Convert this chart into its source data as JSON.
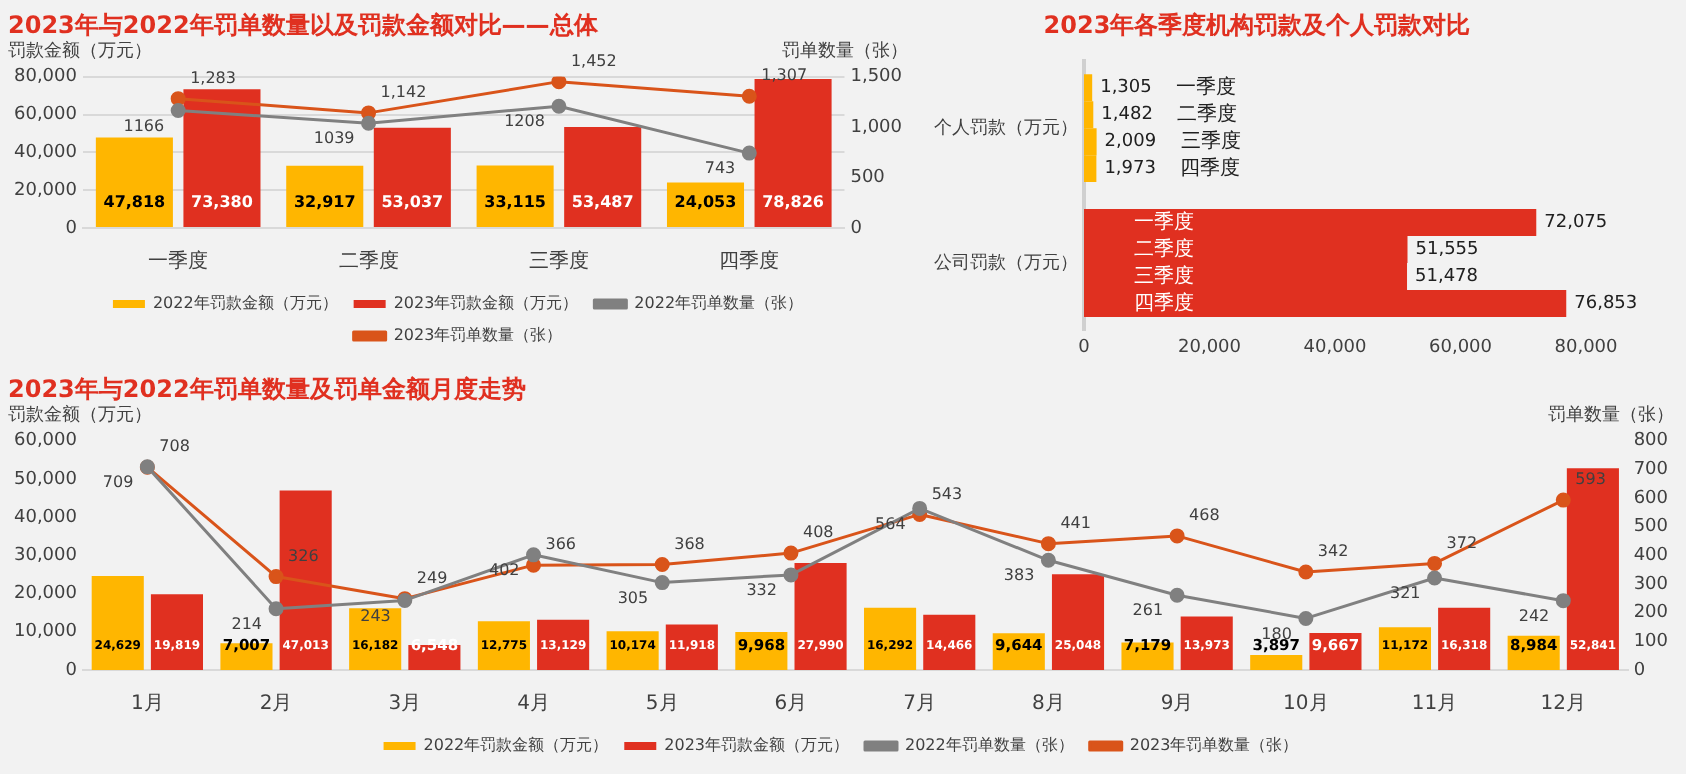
{
  "chart_data": [
    {
      "type": "bar",
      "title": "2023年与2022年罚单数量以及罚款金额对比——总体",
      "ylabel": "罚款金额（万元）",
      "y2label": "罚单数量（张）",
      "categories": [
        "一季度",
        "二季度",
        "三季度",
        "四季度"
      ],
      "series": [
        {
          "name": "2022年罚款金额（万元）",
          "color": "#ffb600",
          "values": [
            47818,
            32917,
            33115,
            24053
          ],
          "value_labels": [
            "47,818",
            "32,917",
            "33,115",
            "24,053"
          ]
        },
        {
          "name": "2023年罚款金额（万元）",
          "color": "#e03020",
          "values": [
            73380,
            53037,
            53487,
            78826
          ],
          "value_labels": [
            "73,380",
            "53,037",
            "53,487",
            "78,826"
          ]
        },
        {
          "name": "2022年罚单数量（张）",
          "type": "line",
          "axis": "y2",
          "color": "#808080",
          "values": [
            1166,
            1039,
            1208,
            743
          ],
          "value_labels": [
            "1166",
            "1039",
            "1208",
            "743"
          ]
        },
        {
          "name": "2023年罚单数量（张）",
          "type": "line",
          "axis": "y2",
          "color": "#d9541a",
          "values": [
            1283,
            1142,
            1452,
            1307
          ],
          "value_labels": [
            "1,283",
            "1,142",
            "1,452",
            "1,307"
          ]
        }
      ],
      "ylim": [
        0,
        80000
      ],
      "yticks": [
        0,
        {
          "value": 20000,
          "label": "20,000"
        },
        {
          "value": 40000,
          "label": "40,000"
        },
        {
          "value": 60000,
          "label": "60,000"
        },
        {
          "value": 80000,
          "label": "80,000"
        }
      ],
      "y2lim": [
        0,
        1500
      ],
      "y2ticks": [
        0,
        500,
        {
          "value": 1000,
          "label": "1,000"
        },
        {
          "value": 1500,
          "label": "1,500"
        }
      ],
      "grid": "y",
      "legend": "bottom",
      "marker": "circle"
    },
    {
      "type": "bar",
      "orientation": "horizontal",
      "title": "2023年各季度机构罚款及个人罚款对比",
      "categories": [
        "个人罚款（万元）",
        "公司罚款（万元）"
      ],
      "series": [
        {
          "name": "一季度",
          "colors": [
            "#ffb600",
            "#e03020"
          ],
          "values": [
            1305,
            72075
          ],
          "value_labels": [
            "1,305",
            "72,075"
          ]
        },
        {
          "name": "二季度",
          "colors": [
            "#ffb600",
            "#e03020"
          ],
          "values": [
            1482,
            51555
          ],
          "value_labels": [
            "1,482",
            "51,555"
          ]
        },
        {
          "name": "三季度",
          "colors": [
            "#ffb600",
            "#e03020"
          ],
          "values": [
            2009,
            51478
          ],
          "value_labels": [
            "2,009",
            "51,478"
          ]
        },
        {
          "name": "四季度",
          "colors": [
            "#ffb600",
            "#e03020"
          ],
          "values": [
            1973,
            76853
          ],
          "value_labels": [
            "1,973",
            "76,853"
          ]
        }
      ],
      "xlim": [
        0,
        80000
      ],
      "xticks": [
        0,
        {
          "value": 20000,
          "label": "20,000"
        },
        {
          "value": 40000,
          "label": "40,000"
        },
        {
          "value": 60000,
          "label": "60,000"
        },
        {
          "value": 80000,
          "label": "80,000"
        }
      ]
    },
    {
      "type": "bar",
      "title": "2023年与2022年罚单数量及罚单金额月度走势",
      "ylabel": "罚款金额（万元）",
      "y2label": "罚单数量（张）",
      "categories": [
        "1月",
        "2月",
        "3月",
        "4月",
        "5月",
        "6月",
        "7月",
        "8月",
        "9月",
        "10月",
        "11月",
        "12月"
      ],
      "series": [
        {
          "name": "2022年罚款金额（万元）",
          "color": "#ffb600",
          "values": [
            24629,
            7007,
            16182,
            12775,
            10174,
            9968,
            16292,
            9644,
            7179,
            3897,
            11172,
            8984
          ],
          "value_labels": [
            "24,629",
            "7,007",
            "16,182",
            "12,775",
            "10,174",
            "9,968",
            "16,292",
            "9,644",
            "7,179",
            "3,897",
            "11,172",
            "8,984"
          ]
        },
        {
          "name": "2023年罚款金额（万元）",
          "color": "#e03020",
          "values": [
            19819,
            47013,
            6548,
            13129,
            11918,
            27990,
            14466,
            25048,
            13973,
            9667,
            16318,
            52841
          ],
          "value_labels": [
            "19,819",
            "47,013",
            "6,548",
            "13,129",
            "11,918",
            "27,990",
            "14,466",
            "25,048",
            "13,973",
            "9,667",
            "16,318",
            "52,841"
          ]
        },
        {
          "name": "2022年罚单数量（张）",
          "type": "line",
          "axis": "y2",
          "color": "#808080",
          "values": [
            709,
            214,
            243,
            402,
            305,
            332,
            564,
            383,
            261,
            180,
            321,
            242
          ],
          "value_labels": [
            "709",
            "214",
            "243",
            "402",
            "305",
            "332",
            "564",
            "383",
            "261",
            "180",
            "321",
            "242"
          ]
        },
        {
          "name": "2023年罚单数量（张）",
          "type": "line",
          "axis": "y2",
          "color": "#d9541a",
          "values": [
            708,
            326,
            249,
            366,
            368,
            408,
            543,
            441,
            468,
            342,
            372,
            593
          ],
          "value_labels": [
            "708",
            "326",
            "249",
            "366",
            "368",
            "408",
            "543",
            "441",
            "468",
            "342",
            "372",
            "593"
          ]
        }
      ],
      "ylim": [
        0,
        60000
      ],
      "yticks": [
        0,
        {
          "value": 10000,
          "label": "10,000"
        },
        {
          "value": 20000,
          "label": "20,000"
        },
        {
          "value": 30000,
          "label": "30,000"
        },
        {
          "value": 40000,
          "label": "40,000"
        },
        {
          "value": 50000,
          "label": "50,000"
        },
        {
          "value": 60000,
          "label": "60,000"
        }
      ],
      "y2lim": [
        0,
        800
      ],
      "y2ticks": [
        0,
        100,
        200,
        300,
        400,
        500,
        600,
        700,
        800
      ],
      "legend": "bottom",
      "marker": "circle"
    }
  ]
}
